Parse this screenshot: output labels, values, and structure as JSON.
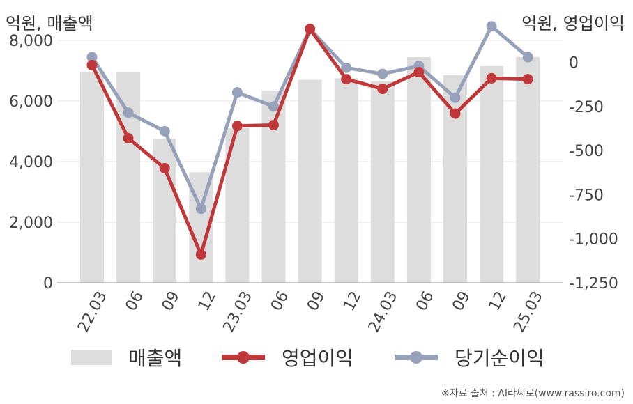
{
  "units": {
    "left": "억원, 매출액",
    "right": "억원, 영업이익"
  },
  "legend": {
    "bar": "매출액",
    "line1": "영업이익",
    "line2": "당기순이익"
  },
  "source": "※자료 출처 : AI라씨로(www.rassiro.com)",
  "colors": {
    "bar": "#dddddd",
    "operating": "#c0383a",
    "net": "#97a2ba",
    "grid": "#e6e6e6",
    "axis": "#b0b0b0"
  },
  "chart_data": {
    "type": "bar+line",
    "categories": [
      "22.03",
      "06",
      "09",
      "12",
      "23.03",
      "06",
      "09",
      "12",
      "24.03",
      "06",
      "09",
      "12",
      "25.03"
    ],
    "series": [
      {
        "name": "매출액",
        "type": "bar",
        "axis": "left",
        "values": [
          6950,
          6950,
          4750,
          3650,
          5100,
          6350,
          6700,
          6750,
          6650,
          7450,
          6850,
          7150,
          7450
        ]
      },
      {
        "name": "영업이익",
        "type": "line",
        "axis": "right",
        "values": [
          -15,
          -430,
          -600,
          -1090,
          -360,
          -355,
          190,
          -95,
          -150,
          -55,
          -290,
          -90,
          -95
        ]
      },
      {
        "name": "당기순이익",
        "type": "line",
        "axis": "right",
        "values": [
          30,
          -285,
          -390,
          -830,
          -170,
          -250,
          190,
          -30,
          -65,
          -20,
          -200,
          205,
          30
        ]
      }
    ],
    "y_left": {
      "lim": [
        0,
        8000
      ],
      "ticks": [
        "0",
        "2,000",
        "4,000",
        "6,000",
        "8,000"
      ]
    },
    "y_right": {
      "lim": [
        -1250,
        125
      ],
      "ticks": [
        "-1,250",
        "-1,000",
        "-750",
        "-500",
        "-250",
        "0"
      ]
    },
    "grid": true,
    "legend_position": "bottom"
  }
}
